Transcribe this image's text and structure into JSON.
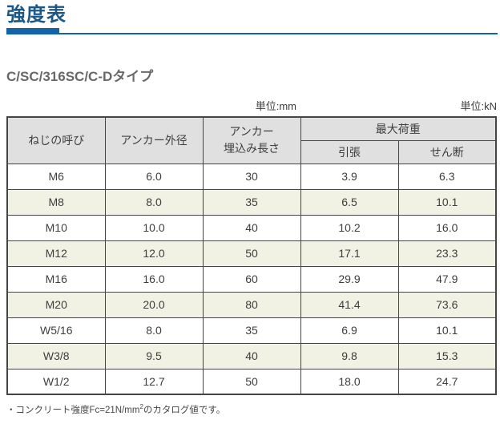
{
  "page": {
    "title": "強度表",
    "subtitle": "C/SC/316SC/C-Dタイプ"
  },
  "units": {
    "mm": "単位:mm",
    "kn": "単位:kN"
  },
  "table": {
    "headers": {
      "screw": "ねじの呼び",
      "outer_diameter": "アンカー外径",
      "depth_line1": "アンカー",
      "depth_line2": "埋込み長さ",
      "max_load": "最大荷重",
      "tension": "引張",
      "shear": "せん断"
    },
    "rows": [
      {
        "size": "M6",
        "diameter": "6.0",
        "depth": "30",
        "tension": "3.9",
        "shear": "6.3"
      },
      {
        "size": "M8",
        "diameter": "8.0",
        "depth": "35",
        "tension": "6.5",
        "shear": "10.1"
      },
      {
        "size": "M10",
        "diameter": "10.0",
        "depth": "40",
        "tension": "10.2",
        "shear": "16.0"
      },
      {
        "size": "M12",
        "diameter": "12.0",
        "depth": "50",
        "tension": "17.1",
        "shear": "23.3"
      },
      {
        "size": "M16",
        "diameter": "16.0",
        "depth": "60",
        "tension": "29.9",
        "shear": "47.9"
      },
      {
        "size": "M20",
        "diameter": "20.0",
        "depth": "80",
        "tension": "41.4",
        "shear": "73.6"
      },
      {
        "size": "W5/16",
        "diameter": "8.0",
        "depth": "35",
        "tension": "6.9",
        "shear": "10.1"
      },
      {
        "size": "W3/8",
        "diameter": "9.5",
        "depth": "40",
        "tension": "9.8",
        "shear": "15.3"
      },
      {
        "size": "W1/2",
        "diameter": "12.7",
        "depth": "50",
        "tension": "18.0",
        "shear": "24.7"
      }
    ]
  },
  "footnote": {
    "prefix": "・コンクリート強度Fc=21N/mm",
    "superscript": "2",
    "suffix": "のカタログ値です。"
  },
  "colors": {
    "accent": "#1263a8",
    "title-text": "#1c5886",
    "subtitle-text": "#686868",
    "header-bg": "#e0e0e0",
    "row-alt-bg": "#f1f2e3",
    "border": "#454545",
    "cell-text": "#3e3e3e"
  }
}
